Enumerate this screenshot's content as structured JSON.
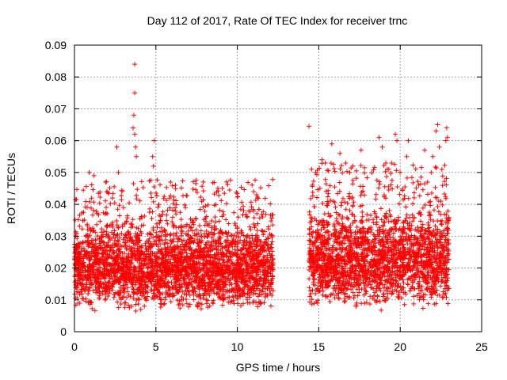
{
  "chart_data": {
    "type": "scatter",
    "title": "Day 112 of 2017, Rate Of TEC Index for receiver trnc",
    "xlabel": "GPS time / hours",
    "ylabel": "ROTI / TECUs",
    "xlim": [
      0,
      25
    ],
    "ylim": [
      0,
      0.09
    ],
    "xticks": [
      "0",
      "5",
      "10",
      "15",
      "20",
      "25"
    ],
    "yticks": [
      "0",
      "0.01",
      "0.02",
      "0.03",
      "0.04",
      "0.05",
      "0.06",
      "0.07",
      "0.08",
      "0.09"
    ],
    "grid": true,
    "marker": "+",
    "color": "#ff0000",
    "series": [
      {
        "name": "ROTI",
        "segments": [
          {
            "x_start": 0.0,
            "x_end": 12.2,
            "y_min": 0.006,
            "y_max": 0.04
          },
          {
            "x_start": 14.4,
            "x_end": 23.0,
            "y_min": 0.006,
            "y_max": 0.045
          }
        ],
        "outliers": [
          {
            "x": 3.7,
            "y": 0.084
          },
          {
            "x": 3.7,
            "y": 0.075
          },
          {
            "x": 3.65,
            "y": 0.068
          },
          {
            "x": 3.6,
            "y": 0.064
          },
          {
            "x": 3.7,
            "y": 0.062
          },
          {
            "x": 3.75,
            "y": 0.058
          },
          {
            "x": 3.8,
            "y": 0.055
          },
          {
            "x": 2.6,
            "y": 0.058
          },
          {
            "x": 4.9,
            "y": 0.06
          },
          {
            "x": 4.8,
            "y": 0.055
          },
          {
            "x": 4.85,
            "y": 0.052
          },
          {
            "x": 0.9,
            "y": 0.05
          },
          {
            "x": 1.2,
            "y": 0.049
          },
          {
            "x": 2.7,
            "y": 0.05
          },
          {
            "x": 5.9,
            "y": 0.047
          },
          {
            "x": 6.2,
            "y": 0.046
          },
          {
            "x": 8.8,
            "y": 0.045
          },
          {
            "x": 11.0,
            "y": 0.044
          },
          {
            "x": 14.4,
            "y": 0.0645
          },
          {
            "x": 15.8,
            "y": 0.059
          },
          {
            "x": 15.2,
            "y": 0.054
          },
          {
            "x": 15.4,
            "y": 0.053
          },
          {
            "x": 16.3,
            "y": 0.056
          },
          {
            "x": 17.1,
            "y": 0.052
          },
          {
            "x": 17.6,
            "y": 0.057
          },
          {
            "x": 18.7,
            "y": 0.061
          },
          {
            "x": 18.9,
            "y": 0.058
          },
          {
            "x": 19.7,
            "y": 0.062
          },
          {
            "x": 19.8,
            "y": 0.06
          },
          {
            "x": 20.5,
            "y": 0.06
          },
          {
            "x": 20.4,
            "y": 0.055
          },
          {
            "x": 21.5,
            "y": 0.057
          },
          {
            "x": 22.0,
            "y": 0.055
          },
          {
            "x": 22.3,
            "y": 0.065
          },
          {
            "x": 22.2,
            "y": 0.063
          },
          {
            "x": 22.4,
            "y": 0.058
          },
          {
            "x": 22.85,
            "y": 0.064
          },
          {
            "x": 22.9,
            "y": 0.061
          },
          {
            "x": 22.8,
            "y": 0.06
          },
          {
            "x": 21.9,
            "y": 0.05
          },
          {
            "x": 19.3,
            "y": 0.051
          },
          {
            "x": 16.9,
            "y": 0.05
          }
        ]
      }
    ]
  }
}
